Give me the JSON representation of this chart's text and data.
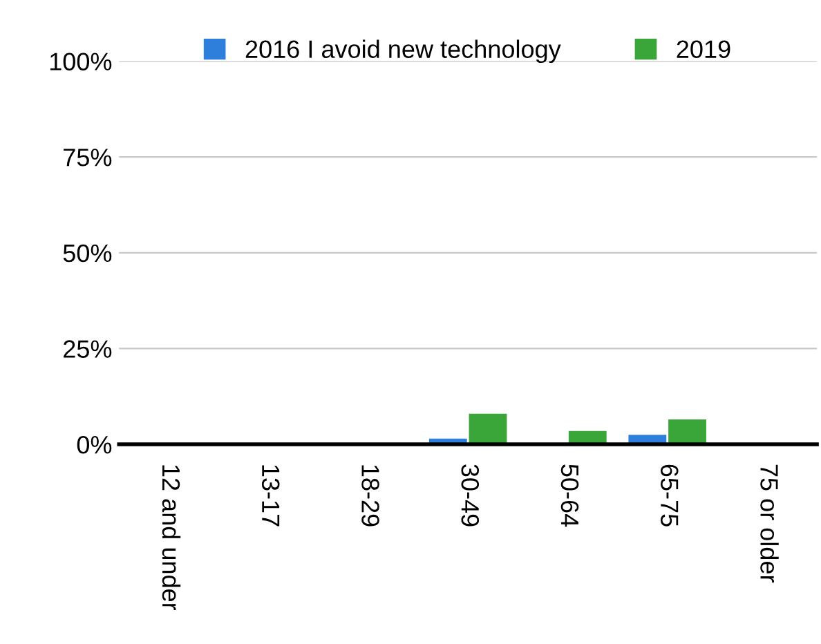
{
  "chart_data": {
    "type": "bar",
    "categories": [
      "12 and under",
      "13-17",
      "18-29",
      "30-49",
      "50-64",
      "65-75",
      "75 or older"
    ],
    "series": [
      {
        "name": "2016 I avoid new technology",
        "color": "#2e7fdc",
        "values": [
          0,
          0,
          0,
          1.5,
          0,
          2.5,
          0
        ]
      },
      {
        "name": "2019",
        "color": "#3aa63a",
        "values": [
          0,
          0,
          0,
          8,
          3.5,
          6.5,
          0
        ]
      }
    ],
    "ylim": [
      0,
      100
    ],
    "yticks": [
      {
        "value": 0,
        "label": "0%"
      },
      {
        "value": 25,
        "label": "25%"
      },
      {
        "value": 50,
        "label": "50%"
      },
      {
        "value": 75,
        "label": "75%"
      },
      {
        "value": 100,
        "label": "100%"
      }
    ],
    "grid": "y",
    "legend": "top"
  }
}
